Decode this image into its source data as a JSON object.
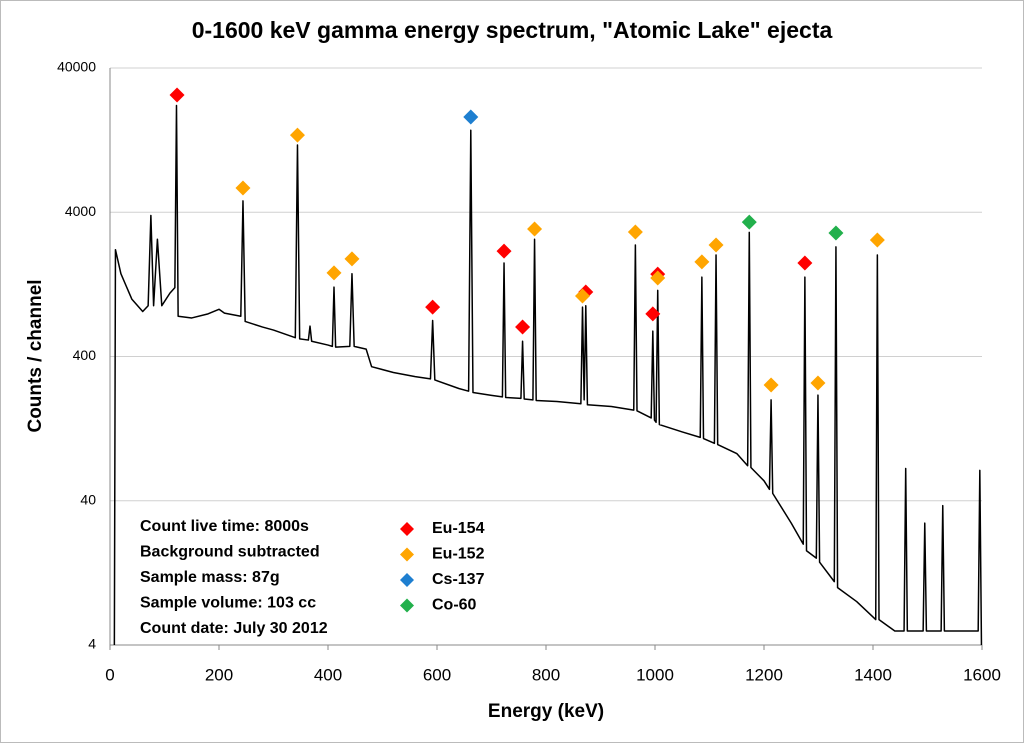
{
  "chart_data": {
    "type": "line",
    "title": "0-1600 keV gamma energy spectrum, \"Atomic Lake\" ejecta",
    "xlabel": "Energy (keV)",
    "ylabel": "Counts / channel",
    "xlim": [
      0,
      1600
    ],
    "xticks": [
      0,
      200,
      400,
      600,
      800,
      1000,
      1200,
      1400,
      1600
    ],
    "ylim": [
      4,
      40000
    ],
    "yticks": [
      4,
      40,
      400,
      4000,
      40000
    ],
    "log_y": true,
    "grid": true,
    "legend": "bottom-left",
    "annotations": [
      "Count live time: 8000s",
      "Background subtracted",
      "Sample mass: 87g",
      "Sample volume: 103 cc",
      "Count date: July 30 2012"
    ],
    "series": [
      {
        "type": "line",
        "color": "#000000",
        "x": [
          8,
          10,
          20,
          40,
          60,
          70,
          75,
          80,
          87,
          95,
          110,
          119,
          122,
          125,
          150,
          180,
          200,
          210,
          240,
          244,
          248,
          280,
          300,
          340,
          344,
          348,
          364,
          367,
          370,
          400,
          408,
          411,
          414,
          440,
          444,
          448,
          470,
          480,
          520,
          560,
          588,
          592,
          596,
          640,
          658,
          662,
          666,
          700,
          720,
          723,
          726,
          754,
          757,
          760,
          776,
          779,
          782,
          820,
          864,
          867,
          870,
          873,
          876,
          920,
          961,
          964,
          967,
          993,
          996,
          999,
          1002,
          1005,
          1008,
          1050,
          1083,
          1086,
          1089,
          1109,
          1112,
          1115,
          1150,
          1170,
          1173,
          1176,
          1200,
          1210,
          1213,
          1216,
          1250,
          1272,
          1275,
          1278,
          1296,
          1299,
          1302,
          1329,
          1332,
          1335,
          1370,
          1405,
          1408,
          1411,
          1440,
          1457,
          1460,
          1463,
          1480,
          1492,
          1495,
          1498,
          1510,
          1525,
          1528,
          1531,
          1560,
          1593,
          1596,
          1599
        ],
        "values": [
          4,
          2200,
          1500,
          1000,
          820,
          900,
          3800,
          900,
          2600,
          900,
          1100,
          1200,
          22000,
          760,
          740,
          790,
          850,
          800,
          760,
          4800,
          700,
          640,
          610,
          540,
          11700,
          530,
          520,
          650,
          510,
          480,
          470,
          1210,
          465,
          470,
          1500,
          470,
          450,
          340,
          310,
          290,
          280,
          710,
          275,
          240,
          230,
          14800,
          225,
          215,
          210,
          1780,
          208,
          205,
          510,
          203,
          200,
          2600,
          198,
          195,
          188,
          880,
          200,
          900,
          185,
          180,
          170,
          2370,
          168,
          150,
          600,
          145,
          140,
          1150,
          135,
          120,
          110,
          1420,
          108,
          100,
          2020,
          98,
          85,
          70,
          2900,
          68,
          55,
          48,
          200,
          45,
          28,
          20,
          1420,
          18,
          16,
          216,
          15,
          11,
          2300,
          10,
          8,
          6,
          2020,
          6,
          5,
          5,
          67,
          5,
          5,
          5,
          28,
          5,
          5,
          5,
          37,
          5,
          5,
          5,
          65,
          4
        ]
      },
      {
        "type": "scatter",
        "name": "Eu-154",
        "color": "#ff0000",
        "x": [
          123,
          592,
          723,
          757,
          873,
          996,
          1005,
          1275
        ],
        "values": [
          26000,
          880,
          2150,
          640,
          1120,
          790,
          1490,
          1780
        ]
      },
      {
        "type": "scatter",
        "name": "Eu-152",
        "color": "#ffa500",
        "x": [
          244,
          344,
          411,
          444,
          779,
          867,
          964,
          1005,
          1086,
          1112,
          1213,
          1299,
          1408
        ],
        "values": [
          5890,
          13700,
          1520,
          1900,
          3060,
          1050,
          2920,
          1400,
          1810,
          2370,
          254,
          262,
          2570
        ]
      },
      {
        "type": "scatter",
        "name": "Cs-137",
        "color": "#1e7fd0",
        "x": [
          662
        ],
        "values": [
          18300
        ]
      },
      {
        "type": "scatter",
        "name": "Co-60",
        "color": "#22b04c",
        "x": [
          1173,
          1332
        ],
        "values": [
          3420,
          2870
        ]
      }
    ]
  }
}
